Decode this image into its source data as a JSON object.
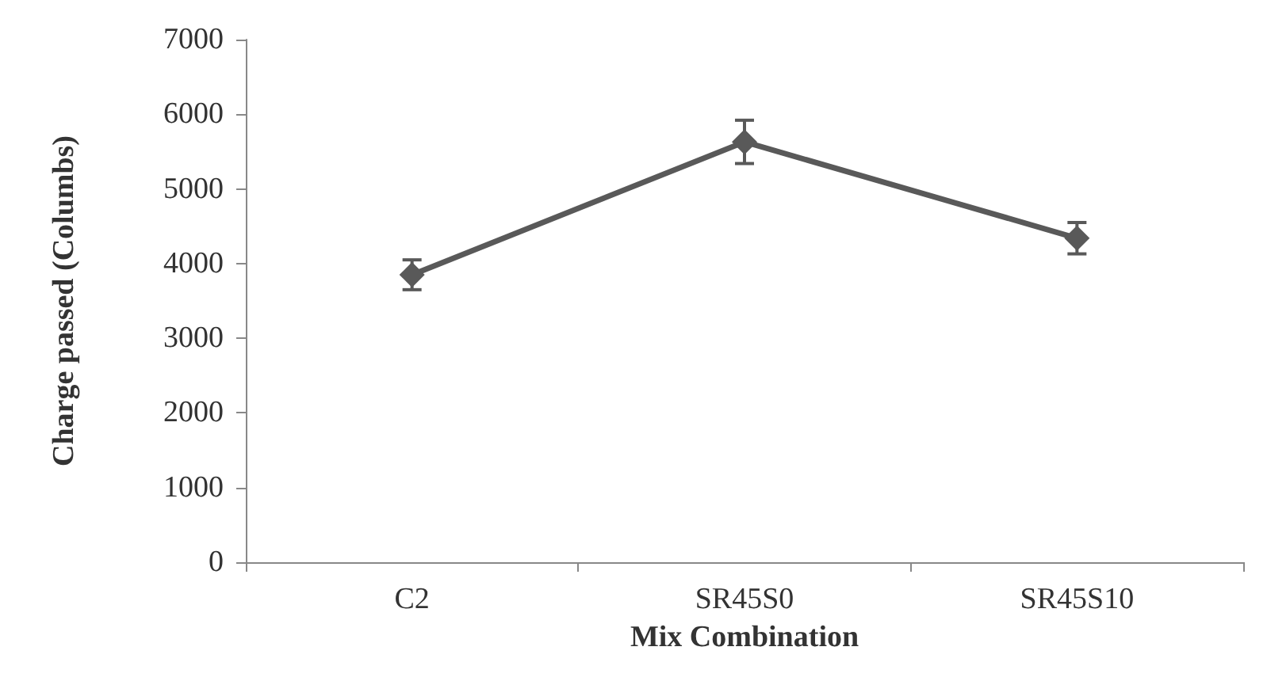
{
  "chart_data": {
    "type": "line",
    "xlabel": "Mix Combination",
    "ylabel": "Charge passed (Columbs)",
    "categories": [
      "C2",
      "SR45S0",
      "SR45S10"
    ],
    "series": [
      {
        "color": "#595959",
        "values": [
          3850,
          5630,
          4340
        ],
        "errors": [
          200,
          290,
          210
        ]
      }
    ],
    "ylim": [
      0,
      7000
    ],
    "yticks": [
      0,
      1000,
      2000,
      3000,
      4000,
      5000,
      6000,
      7000
    ],
    "grid": false,
    "marker": "diamond",
    "line_style": "solid"
  }
}
